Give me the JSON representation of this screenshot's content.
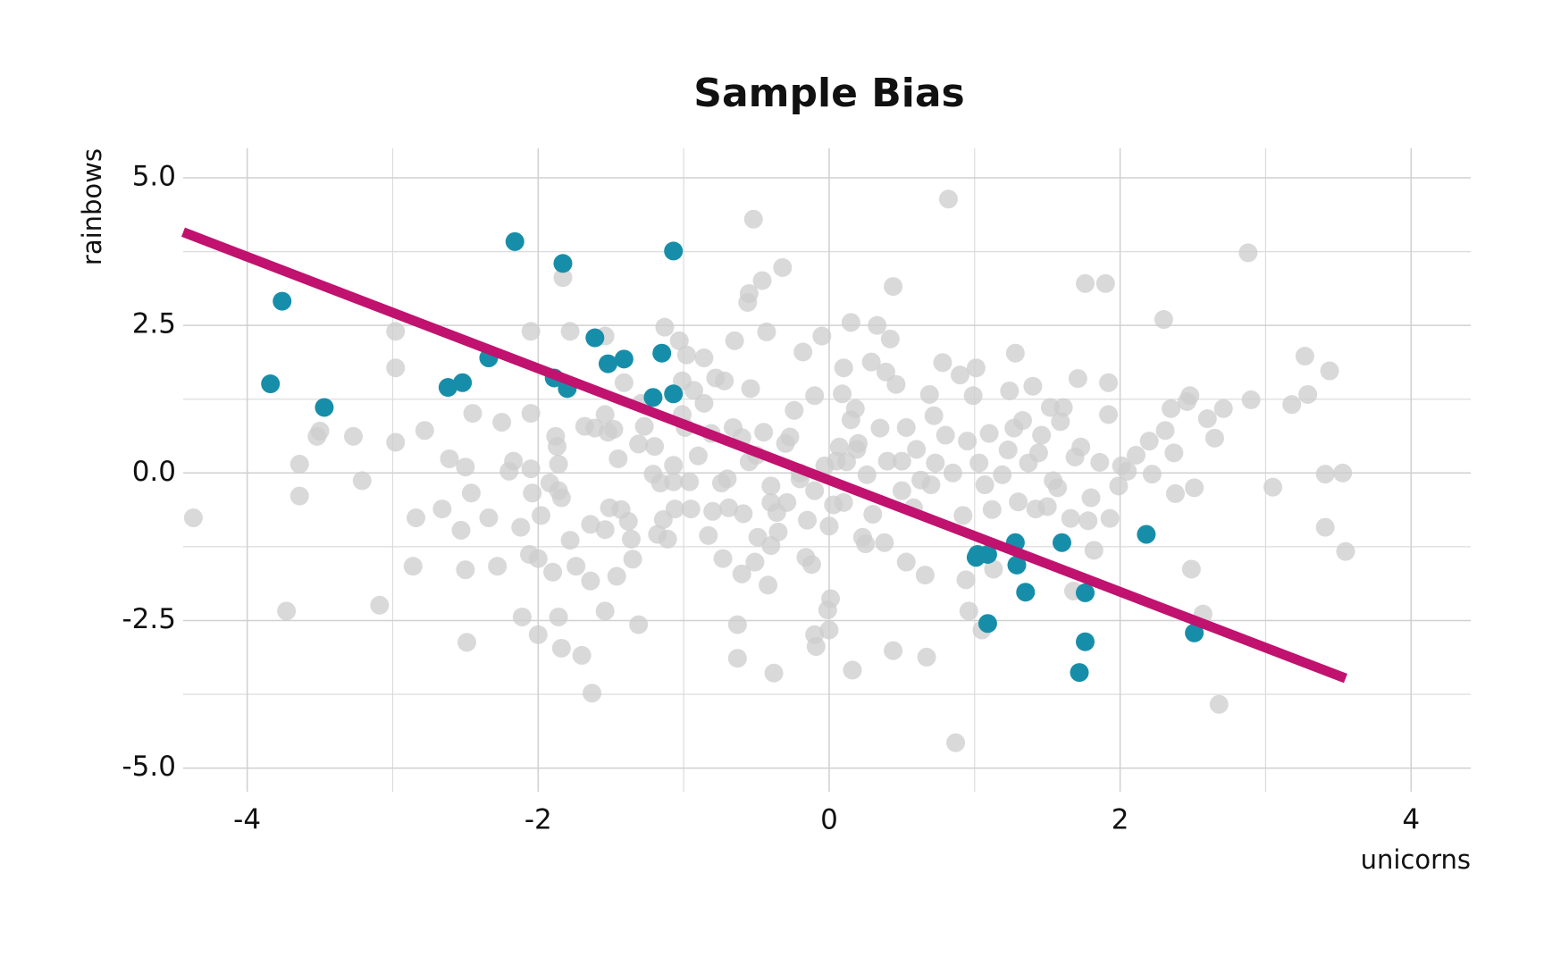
{
  "chart_data": {
    "type": "scatter",
    "title": "Sample Bias",
    "xlabel": "unicorns",
    "ylabel": "rainbows",
    "xlim": [
      -4.44,
      4.41
    ],
    "ylim": [
      -5.4,
      5.5
    ],
    "xticks": [
      -4,
      -2,
      0,
      2,
      4
    ],
    "yticks": [
      {
        "value": 5,
        "label": "5.0"
      },
      {
        "value": 2.5,
        "label": "2.5"
      },
      {
        "value": 0,
        "label": "0.0"
      },
      {
        "value": -2.5,
        "label": "-2.5"
      },
      {
        "value": -5,
        "label": "-5.0"
      }
    ],
    "xminorticks": [
      -3,
      -1,
      1,
      3
    ],
    "yminorticks": [
      3.75,
      1.25,
      -1.25,
      -3.75
    ],
    "grid": true,
    "series": [
      {
        "color": "#cccccc",
        "x": [
          -4.37,
          -3.73,
          -3.64,
          -3.64,
          -3.52,
          -3.5,
          -3.27,
          -3.21,
          -3.09,
          -2.98,
          -2.98,
          -2.98,
          -2.86,
          -2.84,
          -2.78,
          -2.66,
          -2.61,
          -2.53,
          -2.5,
          -2.5,
          -2.49,
          -2.46,
          -2.45,
          -2.34,
          -2.28,
          -2.25,
          -2.2,
          -2.17,
          -2.12,
          -2.11,
          -2.05,
          -2.05,
          -2.05,
          -2.04,
          -2.06,
          -2.0,
          -2.0,
          -1.98,
          -1.9,
          -1.92,
          -1.88,
          -1.87,
          -1.86,
          -1.86,
          -1.84,
          -1.86,
          -1.84,
          -1.83,
          -1.78,
          -1.78,
          -1.74,
          -1.7,
          -1.68,
          -1.64,
          -1.64,
          -1.63,
          -1.61,
          -1.54,
          -1.54,
          -1.52,
          -1.54,
          -1.54,
          -1.51,
          -1.48,
          -1.46,
          -1.45,
          -1.43,
          -1.41,
          -1.38,
          -1.36,
          -1.35,
          -1.31,
          -1.31,
          -1.29,
          -1.27,
          -1.21,
          -1.2,
          -1.18,
          -1.16,
          -1.14,
          -1.13,
          -1.11,
          -1.07,
          -1.07,
          -1.06,
          -1.03,
          -1.01,
          -1.01,
          -0.99,
          -0.98,
          -0.96,
          -0.95,
          -0.93,
          -0.9,
          -0.86,
          -0.86,
          -0.83,
          -0.81,
          -0.8,
          -0.78,
          -0.74,
          -0.73,
          -0.72,
          -0.69,
          -0.66,
          -0.65,
          -0.63,
          -0.63,
          -0.6,
          -0.59,
          -0.56,
          -0.55,
          -0.54,
          -0.55,
          -0.52,
          -0.51,
          -0.49,
          -0.46,
          -0.45,
          -0.43,
          -0.42,
          -0.4,
          -0.4,
          -0.38,
          -0.36,
          -0.32,
          -0.29,
          -0.27,
          -0.24,
          -0.2,
          -0.18,
          -0.16,
          -0.12,
          -0.1,
          -0.1,
          -0.09,
          -0.05,
          -0.03,
          -0.01,
          0.0,
          0.01,
          0.03,
          0.07,
          0.09,
          0.1,
          0.12,
          0.15,
          0.16,
          0.18,
          0.19,
          0.23,
          0.26,
          0.29,
          0.33,
          0.35,
          0.38,
          0.39,
          0.42,
          0.44,
          0.44,
          0.46,
          0.5,
          0.53,
          0.53,
          0.58,
          0.63,
          0.66,
          0.67,
          0.69,
          0.72,
          0.73,
          0.78,
          0.8,
          0.82,
          0.85,
          0.87,
          0.9,
          0.92,
          0.94,
          0.95,
          0.96,
          0.99,
          1.01,
          1.03,
          1.05,
          1.07,
          1.1,
          1.12,
          1.13,
          1.19,
          1.23,
          1.24,
          1.27,
          1.28,
          1.3,
          1.33,
          1.37,
          1.4,
          1.42,
          1.44,
          1.46,
          1.5,
          1.52,
          1.54,
          1.57,
          1.59,
          1.61,
          1.66,
          1.68,
          1.69,
          1.71,
          1.73,
          1.76,
          1.78,
          1.8,
          1.82,
          1.86,
          1.9,
          1.92,
          1.92,
          1.93,
          1.99,
          2.01,
          2.05,
          2.11,
          2.2,
          2.22,
          2.3,
          2.31,
          2.35,
          2.37,
          2.38,
          2.46,
          2.48,
          2.49,
          2.51,
          2.57,
          2.6,
          2.65,
          2.68,
          2.71,
          2.9,
          2.88,
          3.05,
          3.18,
          3.27,
          3.29,
          3.41,
          3.41,
          3.44,
          3.53,
          3.55,
          -0.5,
          -0.3,
          -0.2,
          -0.1,
          0.05,
          0.1,
          0.2,
          0.3,
          0.4,
          -0.4,
          0.15,
          -0.6,
          0.5,
          -0.15,
          0.25,
          -0.35,
          0.6,
          0.7,
          -0.7,
          0.0
        ],
        "y": [
          -0.76,
          -2.34,
          0.15,
          -0.39,
          0.62,
          0.71,
          0.62,
          -0.13,
          -2.24,
          2.4,
          1.78,
          0.52,
          -1.58,
          -0.76,
          0.72,
          -0.61,
          0.24,
          -0.97,
          -1.64,
          0.1,
          -2.87,
          -0.34,
          1.01,
          -0.76,
          -1.58,
          0.86,
          0.03,
          0.2,
          -0.92,
          -2.44,
          2.4,
          1.01,
          0.07,
          -0.34,
          -1.38,
          -1.45,
          -2.74,
          -0.72,
          -1.68,
          -0.17,
          0.62,
          0.45,
          0.15,
          -0.3,
          -0.42,
          -2.44,
          -2.97,
          3.31,
          2.4,
          -1.14,
          -1.58,
          -3.09,
          0.79,
          -1.83,
          -0.87,
          -3.73,
          0.76,
          2.32,
          0.99,
          0.69,
          -0.96,
          -2.34,
          -0.59,
          0.74,
          -1.75,
          0.24,
          -0.62,
          1.53,
          -0.82,
          -1.12,
          -1.46,
          0.49,
          -2.57,
          1.18,
          0.79,
          -0.02,
          0.45,
          -1.04,
          -0.17,
          -0.79,
          2.47,
          -1.12,
          0.13,
          -0.15,
          -0.61,
          2.24,
          1.56,
          0.99,
          0.77,
          2.0,
          -0.15,
          -0.61,
          1.4,
          0.29,
          1.95,
          1.18,
          -1.06,
          0.67,
          -0.65,
          1.61,
          -0.17,
          -1.45,
          1.56,
          -0.59,
          0.77,
          2.24,
          -2.57,
          -3.14,
          -1.71,
          -0.69,
          2.89,
          3.04,
          1.43,
          0.19,
          4.3,
          -1.51,
          -1.09,
          3.26,
          0.69,
          2.39,
          -1.9,
          -0.22,
          -1.23,
          -3.39,
          -0.67,
          3.48,
          -0.5,
          0.61,
          1.06,
          -0.1,
          2.05,
          -1.43,
          -1.55,
          1.31,
          -2.74,
          -2.94,
          2.32,
          0.12,
          -2.32,
          -2.66,
          -2.13,
          -0.54,
          0.44,
          1.34,
          1.78,
          0.19,
          2.55,
          -3.34,
          1.09,
          0.4,
          -1.09,
          -0.03,
          1.88,
          2.5,
          0.76,
          -1.18,
          1.71,
          2.27,
          3.16,
          -3.01,
          1.5,
          0.2,
          -1.51,
          0.77,
          -0.59,
          -0.12,
          -1.73,
          -3.12,
          1.33,
          0.97,
          0.17,
          1.87,
          0.64,
          4.64,
          0.0,
          -4.57,
          1.66,
          -0.72,
          -1.81,
          0.54,
          -2.34,
          1.31,
          1.78,
          0.17,
          -2.66,
          -0.2,
          0.67,
          -0.62,
          -1.63,
          -0.03,
          0.39,
          1.39,
          0.76,
          2.03,
          -0.49,
          0.89,
          0.17,
          1.47,
          -0.61,
          0.34,
          0.64,
          -0.57,
          1.11,
          -0.13,
          -0.25,
          0.87,
          1.11,
          -0.77,
          -2.0,
          0.27,
          1.6,
          0.44,
          3.21,
          -0.81,
          -0.42,
          -1.31,
          0.18,
          3.21,
          0.99,
          1.53,
          -0.77,
          -0.22,
          0.12,
          0.03,
          0.3,
          0.54,
          -0.02,
          2.6,
          0.72,
          1.09,
          0.34,
          -0.35,
          1.21,
          1.31,
          -1.63,
          -0.25,
          -2.39,
          0.92,
          0.59,
          -3.92,
          1.09,
          1.24,
          3.73,
          -0.24,
          1.16,
          1.98,
          1.33,
          -0.92,
          -0.02,
          1.73,
          0.0,
          -1.33,
          0.3,
          0.5,
          0.0,
          -0.3,
          0.2,
          -0.5,
          0.5,
          -0.7,
          0.2,
          -0.5,
          0.9,
          0.6,
          -0.3,
          -0.8,
          -1.2,
          -1.0,
          0.4,
          -0.2,
          -0.1,
          -0.9
        ]
      },
      {
        "color": "#178ea9",
        "x": [
          -3.76,
          -3.84,
          -3.47,
          -2.62,
          -2.52,
          -2.34,
          -2.16,
          -1.83,
          -1.89,
          -1.8,
          -1.61,
          -1.52,
          -1.41,
          -1.15,
          -1.21,
          -1.07,
          -1.07,
          1.02,
          1.09,
          1.01,
          1.28,
          1.29,
          1.35,
          1.6,
          1.76,
          1.09,
          1.76,
          1.72,
          2.18,
          2.51
        ],
        "y": [
          2.91,
          1.51,
          1.11,
          1.45,
          1.53,
          1.95,
          3.92,
          3.55,
          1.61,
          1.43,
          2.29,
          1.85,
          1.93,
          2.03,
          1.28,
          1.34,
          3.76,
          -1.38,
          -1.38,
          -1.43,
          -1.18,
          -1.56,
          -2.02,
          -1.18,
          -2.03,
          -2.55,
          -2.86,
          -3.38,
          -1.04,
          -2.71
        ]
      }
    ],
    "fit_line": {
      "type": "line",
      "color": "#c0126e",
      "x": [
        -4.44,
        3.55
      ],
      "y": [
        4.08,
        -3.48
      ]
    }
  }
}
